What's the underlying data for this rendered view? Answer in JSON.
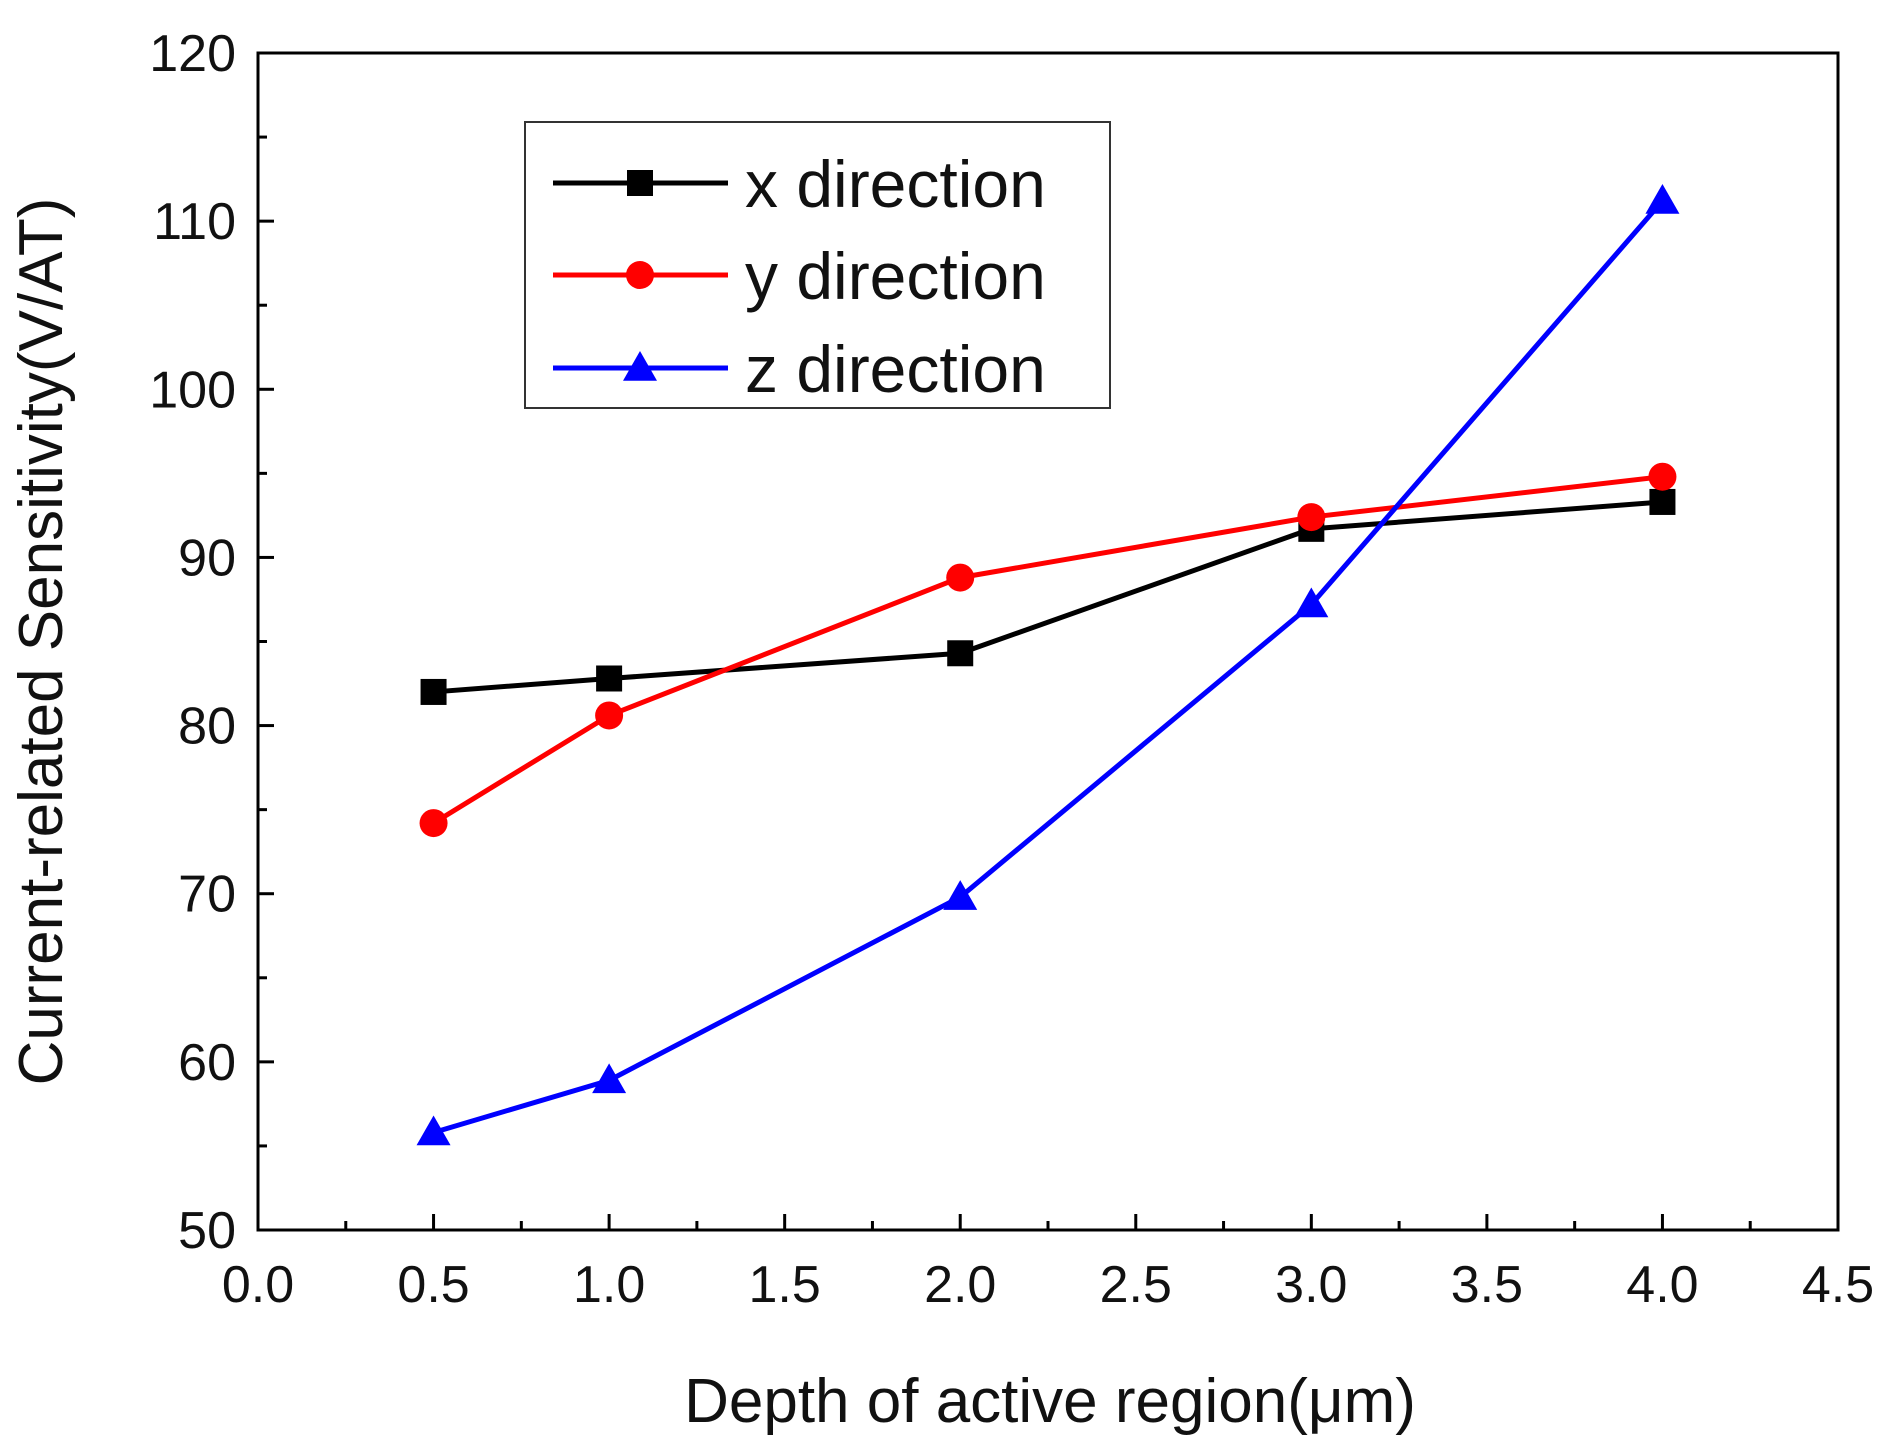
{
  "chart_data": {
    "type": "line",
    "title": "",
    "xlabel": "Depth of active region(μm)",
    "ylabel": "Current-related Sensitivity(V/AT)",
    "xlim": [
      0.0,
      4.5
    ],
    "ylim": [
      50,
      120
    ],
    "xticks": [
      0.0,
      0.5,
      1.0,
      1.5,
      2.0,
      2.5,
      3.0,
      3.5,
      4.0,
      4.5
    ],
    "xtick_labels": [
      "0.0",
      "0.5",
      "1.0",
      "1.5",
      "2.0",
      "2.5",
      "3.0",
      "3.5",
      "4.0",
      "4.5"
    ],
    "yticks": [
      50,
      60,
      70,
      80,
      90,
      100,
      110,
      120
    ],
    "ytick_labels": [
      "50",
      "60",
      "70",
      "80",
      "90",
      "100",
      "110",
      "120"
    ],
    "grid": false,
    "legend_position": "top-left",
    "x": [
      0.5,
      1.0,
      2.0,
      3.0,
      4.0
    ],
    "series": [
      {
        "name": "x direction",
        "color": "#000000",
        "marker": "square",
        "values": [
          82.0,
          82.8,
          84.3,
          91.7,
          93.3
        ]
      },
      {
        "name": "y direction",
        "color": "#ff0000",
        "marker": "circle",
        "values": [
          74.2,
          80.6,
          88.8,
          92.4,
          94.8
        ]
      },
      {
        "name": "z direction",
        "color": "#0000ff",
        "marker": "triangle",
        "values": [
          55.8,
          58.9,
          69.8,
          87.2,
          111.2
        ]
      }
    ]
  }
}
